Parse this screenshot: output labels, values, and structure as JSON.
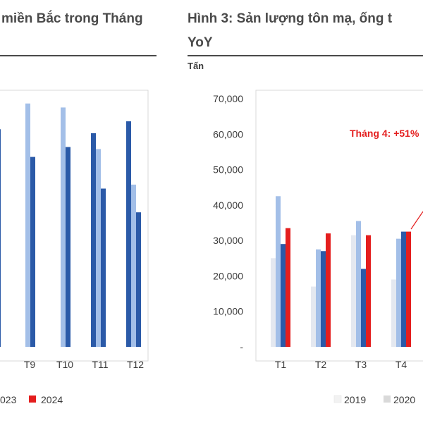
{
  "left_panel": {
    "title": "miền Bắc trong Tháng",
    "legend": [
      {
        "label": "023",
        "color": "#1f4e9c"
      },
      {
        "label": "2024",
        "color": "#e41e1e"
      }
    ]
  },
  "right_panel": {
    "title_line1": "Hình 3: Sản lượng tôn mạ, ống t",
    "title_line2": "YoY",
    "unit": "Tấn",
    "annotation": "Tháng 4: +51%",
    "legend": [
      {
        "label": "2019",
        "color": "#f2f2f2"
      },
      {
        "label": "2020",
        "color": "#d9d9d9"
      }
    ]
  },
  "chart_data": [
    {
      "type": "bar",
      "title": "miền Bắc trong Tháng",
      "categories": [
        "T9",
        "T10",
        "T11",
        "T12"
      ],
      "ylim": [
        0,
        62000
      ],
      "grid": false,
      "series": [
        {
          "color": "#a3bfe8",
          "values": [
            61500,
            60500,
            50000,
            41000
          ]
        },
        {
          "color": "#2b5aa8",
          "values": [
            48000,
            50500,
            40000,
            34000
          ]
        }
      ],
      "extra_bars": [
        {
          "category": "T11",
          "color": "#2b5aa8",
          "value": 54000,
          "position": "left"
        },
        {
          "category": "T12",
          "color": "#2b5aa8",
          "value": 57000,
          "position": "left"
        }
      ]
    },
    {
      "type": "bar",
      "title": "Hình 3: Sản lượng tôn mạ, ống t YoY",
      "ylabel": "Tấn",
      "categories": [
        "T1",
        "T2",
        "T3",
        "T4"
      ],
      "ylim": [
        0,
        70000
      ],
      "yticks": [
        "-",
        "10,000",
        "20,000",
        "30,000",
        "40,000",
        "50,000",
        "60,000",
        "70,000"
      ],
      "grid": false,
      "series": [
        {
          "name": "2019",
          "color": "#e4e8f0",
          "values": [
            25000,
            17000,
            31500,
            19000
          ]
        },
        {
          "name": "2020",
          "color": "#a3bfe8",
          "values": [
            42500,
            27500,
            35500,
            30500
          ]
        },
        {
          "color": "#2b5aa8",
          "values": [
            29000,
            27000,
            22000,
            32500
          ]
        },
        {
          "color": "#e41e1e",
          "values": [
            33500,
            32000,
            31500,
            32500
          ]
        }
      ]
    }
  ]
}
